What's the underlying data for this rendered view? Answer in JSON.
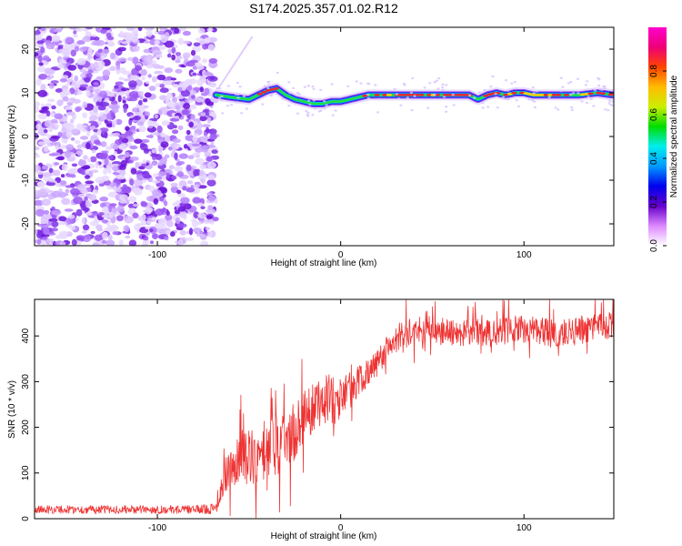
{
  "title": "S174.2025.357.01.02.R12",
  "chart_data": [
    {
      "type": "heatmap",
      "xlabel": "Height of straight line (km)",
      "ylabel": "Frequency (Hz)",
      "xlim": [
        -167,
        149
      ],
      "ylim": [
        -25,
        25
      ],
      "xticks": [
        -100,
        0,
        100
      ],
      "yticks": [
        -20,
        -10,
        0,
        10,
        20
      ],
      "noise_region_x": [
        -167,
        -68
      ],
      "ridge": {
        "x": [
          -68,
          -60,
          -50,
          -45,
          -40,
          -35,
          -30,
          -25,
          -20,
          -15,
          -10,
          -5,
          0,
          5,
          10,
          15,
          20,
          30,
          40,
          50,
          60,
          70,
          75,
          80,
          85,
          90,
          95,
          100,
          105,
          110,
          120,
          130,
          140,
          149
        ],
        "y": [
          9.5,
          9,
          8.5,
          9.5,
          10.5,
          11,
          9.5,
          8.5,
          8,
          7.5,
          7.5,
          8,
          8,
          8.5,
          9,
          9.5,
          9.5,
          9.5,
          9.5,
          9.5,
          9.5,
          9.5,
          8.5,
          9.5,
          10,
          9.5,
          10,
          10,
          9.5,
          9.5,
          9.5,
          9.5,
          10,
          9.5
        ]
      },
      "colorbar": {
        "label": "Normalized spectral amplitude",
        "ticks": [
          "0.0",
          "0.2",
          "0.4",
          "0.6",
          "0.8"
        ],
        "range": [
          0,
          1
        ]
      }
    },
    {
      "type": "line",
      "xlabel": "Height of straight line (km)",
      "ylabel": "SNR (10 * v/v)",
      "xlim": [
        -167,
        149
      ],
      "ylim": [
        0,
        480
      ],
      "xticks": [
        -100,
        0,
        100
      ],
      "yticks": [
        0,
        100,
        200,
        300,
        400
      ],
      "series": [
        {
          "name": "SNR",
          "color": "#ee3333",
          "x": [
            -167,
            -140,
            -110,
            -80,
            -68,
            -63,
            -58,
            -53,
            -48,
            -43,
            -38,
            -33,
            -28,
            -23,
            -18,
            -13,
            -8,
            -3,
            2,
            7,
            12,
            17,
            22,
            27,
            32,
            40,
            50,
            60,
            70,
            80,
            90,
            100,
            110,
            120,
            130,
            140,
            149
          ],
          "values": [
            20,
            20,
            20,
            20,
            22,
            90,
            120,
            140,
            130,
            150,
            160,
            170,
            180,
            200,
            230,
            250,
            260,
            260,
            270,
            290,
            310,
            330,
            355,
            380,
            400,
            410,
            415,
            405,
            410,
            405,
            410,
            415,
            410,
            405,
            410,
            420,
            425
          ],
          "noise": [
            9,
            9,
            9,
            9,
            12,
            45,
            55,
            60,
            65,
            70,
            70,
            70,
            65,
            60,
            60,
            55,
            55,
            55,
            45,
            40,
            35,
            30,
            30,
            30,
            30,
            30,
            30,
            30,
            30,
            30,
            30,
            30,
            30,
            30,
            30,
            30,
            30
          ]
        }
      ]
    },
    {
      "type": "colorbar",
      "colors": [
        "#ffffff",
        "#dd88ff",
        "#6600cc",
        "#0000ee",
        "#0099ff",
        "#00eeee",
        "#00dd00",
        "#ccee00",
        "#ffbb00",
        "#ff4400",
        "#ee0077",
        "#ff00cc"
      ]
    }
  ]
}
